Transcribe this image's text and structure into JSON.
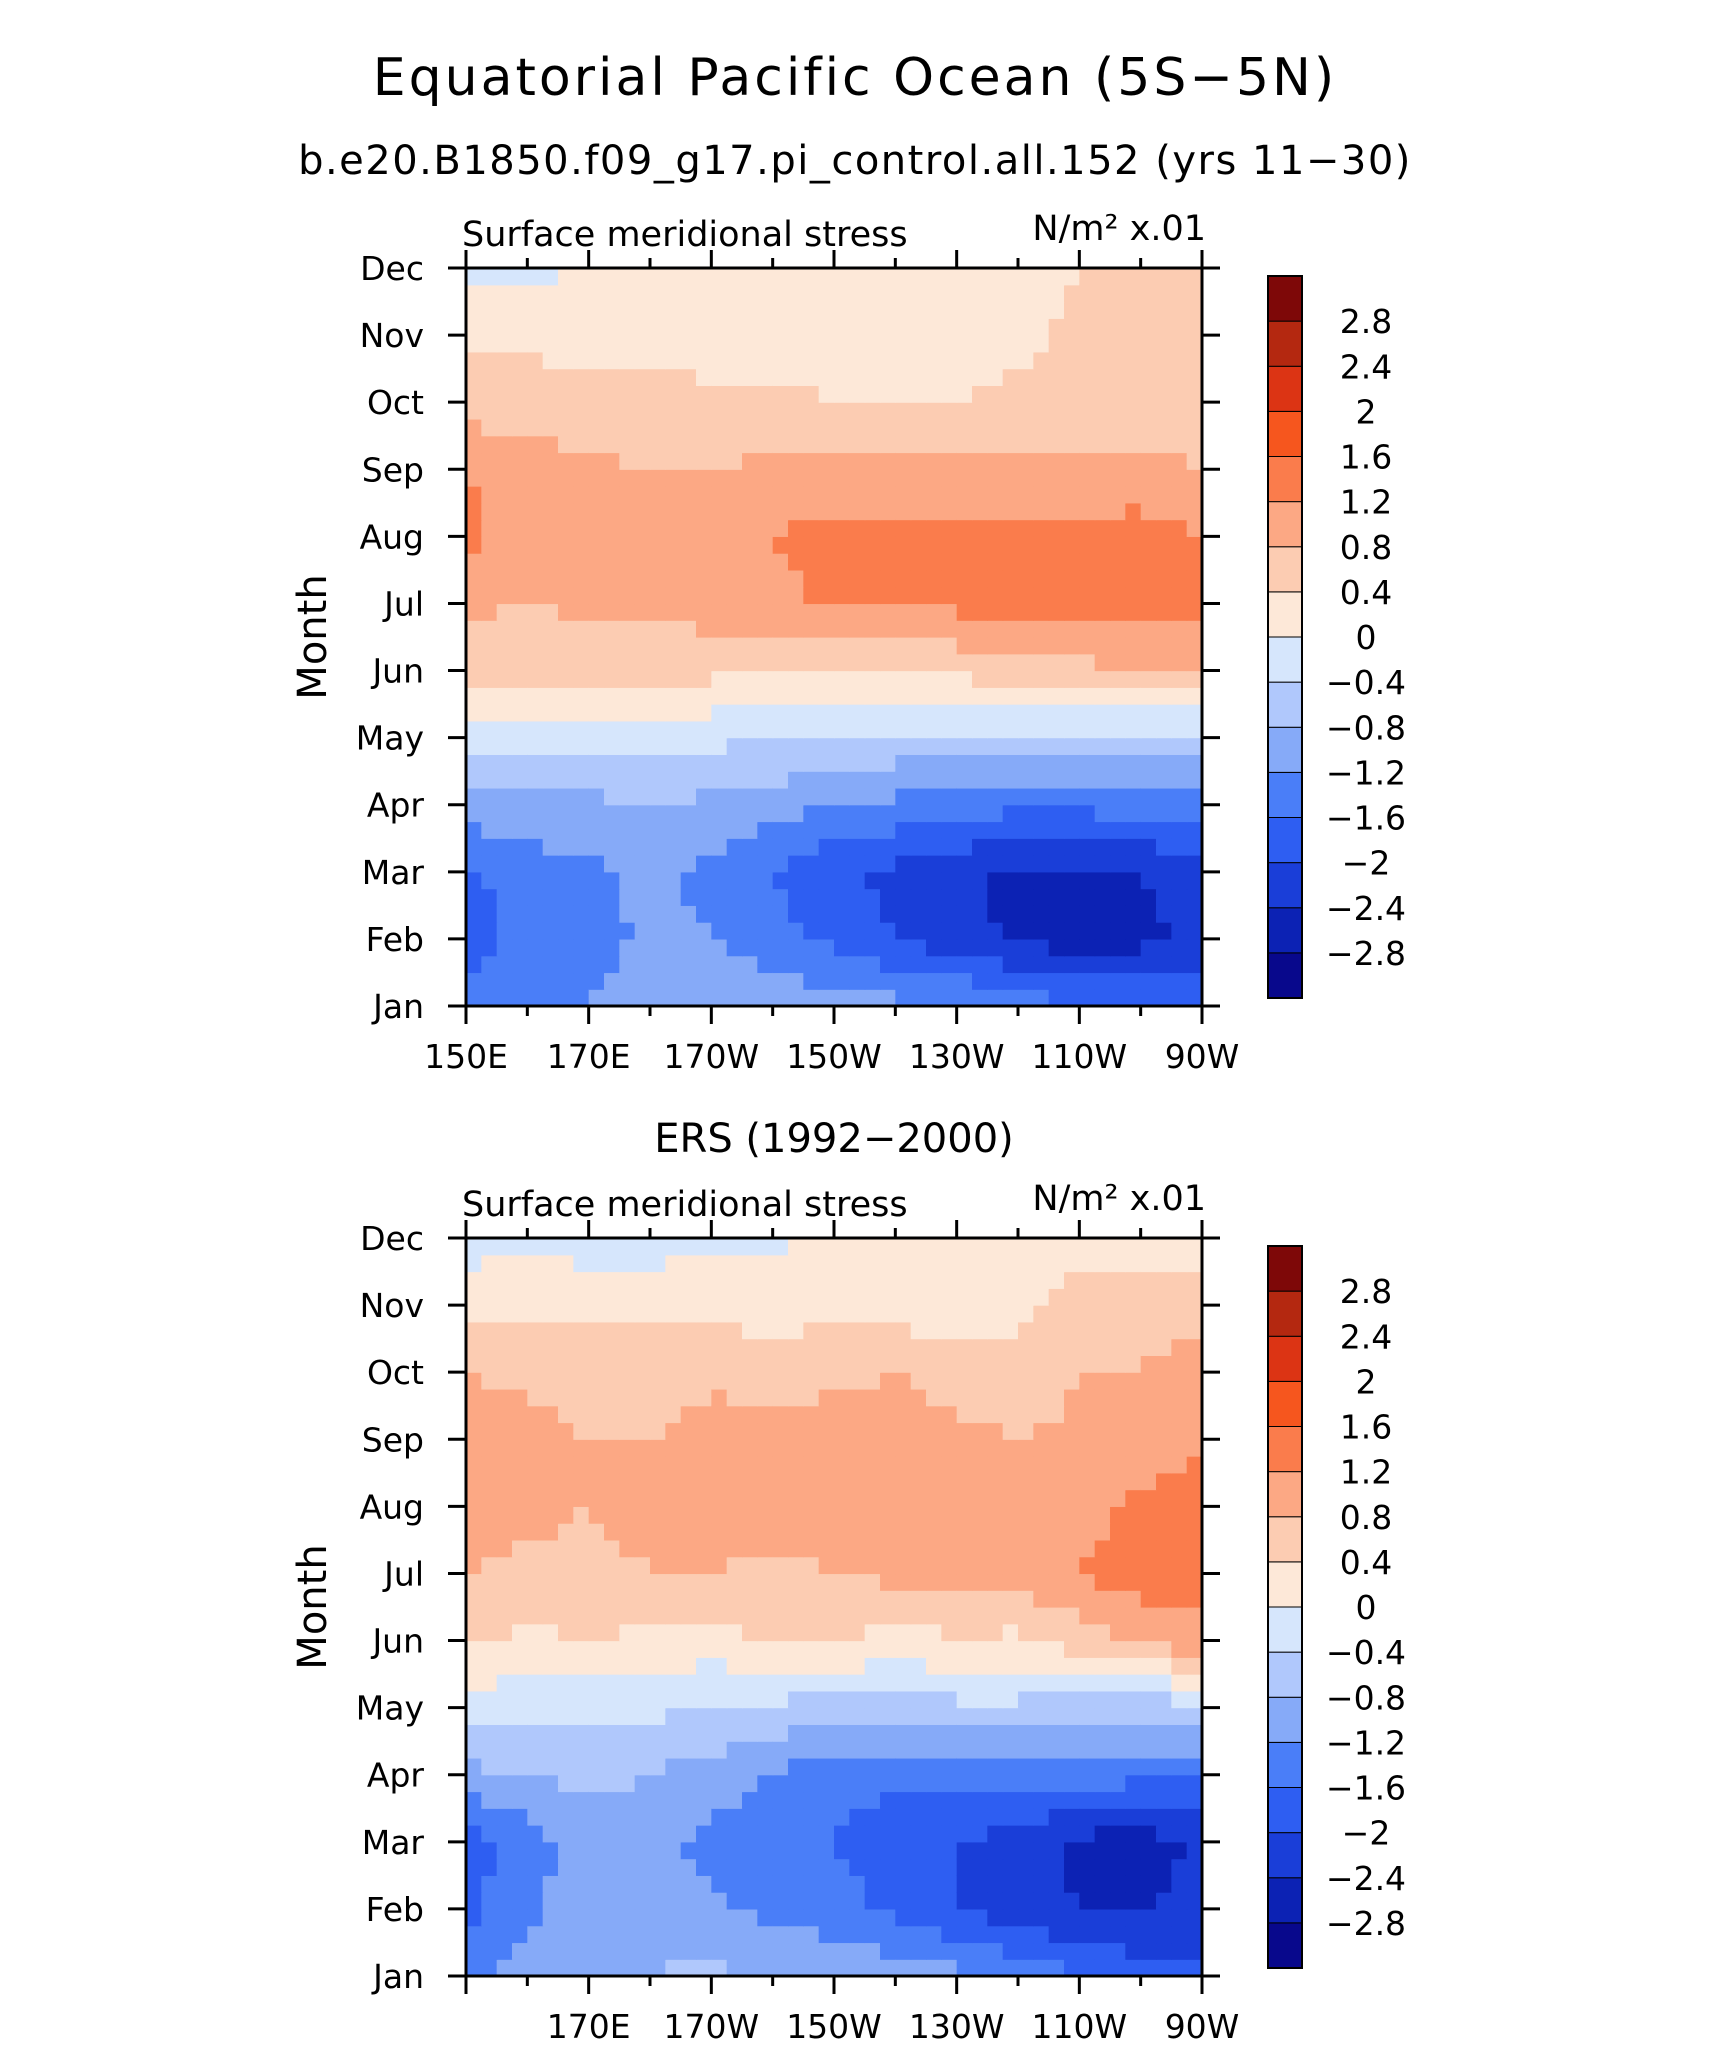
{
  "title": "Equatorial Pacific Ocean (5S−5N)",
  "subtitle": "b.e20.B1850.f09_g17.pi_control.all.152 (yrs 11−30)",
  "colors": {
    "neg2_8": "#08088c",
    "neg2_4": "#0c22b4",
    "neg2_0": "#1a3ed8",
    "neg1_6": "#2e5ef2",
    "neg1_2": "#4a7ef8",
    "neg0_8": "#86aaf8",
    "neg0_4": "#b0c8fc",
    "neg0_0": "#d6e6fc",
    "pos0_0": "#fde8d8",
    "pos0_4": "#fcccb2",
    "pos0_8": "#fca884",
    "pos1_2": "#fa7c4c",
    "pos1_6": "#f6561e",
    "pos2_0": "#dc3414",
    "pos2_4": "#b42810",
    "pos2_8": "#7e0808"
  },
  "chart_data": [
    {
      "type": "heatmap",
      "panel_title": "",
      "variable_label": "Surface meridional stress",
      "units_label": "N/m² x.01",
      "ylabel": "Month",
      "y_tick_labels": [
        "Jan",
        "Feb",
        "Mar",
        "Apr",
        "May",
        "Jun",
        "Jul",
        "Aug",
        "Sep",
        "Oct",
        "Nov",
        "Dec"
      ],
      "x_tick_labels": [
        "150E",
        "170E",
        "170W",
        "150W",
        "130W",
        "110W",
        "90W"
      ],
      "x": [
        150,
        160,
        170,
        180,
        190,
        200,
        210,
        220,
        230,
        240,
        250,
        260,
        270
      ],
      "colorbar_levels": [
        -2.8,
        -2.4,
        -2,
        -1.6,
        -1.2,
        -0.8,
        -0.4,
        0,
        0.4,
        0.8,
        1.2,
        1.6,
        2,
        2.4,
        2.8
      ],
      "values": [
        [
          -1.5,
          -1.3,
          -1.2,
          -0.9,
          -0.8,
          -0.9,
          -1.0,
          -1.1,
          -1.2,
          -1.3,
          -1.6,
          -1.7,
          -1.8
        ],
        [
          -1.8,
          -1.5,
          -1.4,
          -1.1,
          -1.2,
          -1.5,
          -1.7,
          -2.0,
          -2.2,
          -2.5,
          -2.6,
          -2.5,
          -2.3
        ],
        [
          -1.7,
          -1.4,
          -1.3,
          -1.1,
          -1.3,
          -1.6,
          -1.9,
          -2.1,
          -2.3,
          -2.5,
          -2.5,
          -2.4,
          -2.2
        ],
        [
          -1.0,
          -0.9,
          -0.9,
          -0.8,
          -0.9,
          -1.0,
          -1.2,
          -1.3,
          -1.4,
          -1.5,
          -1.5,
          -1.4,
          -1.3
        ],
        [
          -0.2,
          -0.2,
          -0.2,
          -0.2,
          -0.3,
          -0.4,
          -0.4,
          -0.5,
          -0.5,
          -0.5,
          -0.5,
          -0.5,
          -0.5
        ],
        [
          0.5,
          0.5,
          0.5,
          0.5,
          0.5,
          0.5,
          0.4,
          0.4,
          0.5,
          0.6,
          0.7,
          0.8,
          0.8
        ],
        [
          0.9,
          0.8,
          0.9,
          0.9,
          1.0,
          1.1,
          1.3,
          1.3,
          1.3,
          1.3,
          1.3,
          1.3,
          1.3
        ],
        [
          1.3,
          1.0,
          0.9,
          0.9,
          1.0,
          1.2,
          1.3,
          1.3,
          1.3,
          1.3,
          1.3,
          1.4,
          1.2
        ],
        [
          1.2,
          1.0,
          0.9,
          0.8,
          0.8,
          0.9,
          1.0,
          1.0,
          0.9,
          0.9,
          0.9,
          0.9,
          0.8
        ],
        [
          0.6,
          0.6,
          0.5,
          0.5,
          0.5,
          0.5,
          0.4,
          0.4,
          0.4,
          0.5,
          0.6,
          0.6,
          0.6
        ],
        [
          0.3,
          0.3,
          0.3,
          0.3,
          0.2,
          0.2,
          0.2,
          0.2,
          0.2,
          0.3,
          0.5,
          0.5,
          0.5
        ],
        [
          -0.1,
          -0.1,
          0.0,
          0.1,
          0.1,
          0.1,
          0.1,
          0.1,
          0.1,
          0.2,
          0.4,
          0.4,
          0.4
        ]
      ]
    },
    {
      "type": "heatmap",
      "panel_title": "ERS (1992−2000)",
      "variable_label": "Surface meridional stress",
      "units_label": "N/m² x.01",
      "ylabel": "Month",
      "y_tick_labels": [
        "Jan",
        "Feb",
        "Mar",
        "Apr",
        "May",
        "Jun",
        "Jul",
        "Aug",
        "Sep",
        "Oct",
        "Nov",
        "Dec"
      ],
      "x_tick_labels": [
        "170E",
        "170W",
        "150W",
        "130W",
        "110W",
        "90W"
      ],
      "x": [
        150,
        160,
        170,
        180,
        190,
        200,
        210,
        220,
        230,
        240,
        250,
        260,
        270
      ],
      "colorbar_levels": [
        -2.8,
        -2.4,
        -2,
        -1.6,
        -1.2,
        -0.8,
        -0.4,
        0,
        0.4,
        0.8,
        1.2,
        1.6,
        2,
        2.4,
        2.8
      ],
      "values": [
        [
          -1.3,
          -1.0,
          -0.9,
          -0.8,
          -0.7,
          -0.9,
          -0.9,
          -1.0,
          -1.1,
          -1.3,
          -1.6,
          -1.8,
          -1.9
        ],
        [
          -1.7,
          -1.3,
          -0.9,
          -1.0,
          -1.1,
          -1.3,
          -1.4,
          -1.7,
          -2.0,
          -2.2,
          -2.4,
          -2.4,
          -2.3
        ],
        [
          -1.8,
          -1.4,
          -1.0,
          -1.1,
          -1.3,
          -1.5,
          -1.6,
          -1.8,
          -2.0,
          -2.2,
          -2.5,
          -2.6,
          -2.3
        ],
        [
          -0.9,
          -0.8,
          -0.7,
          -0.8,
          -1.0,
          -1.2,
          -1.5,
          -1.5,
          -1.5,
          -1.4,
          -1.4,
          -1.5,
          -1.5
        ],
        [
          -0.2,
          -0.3,
          -0.3,
          -0.3,
          -0.4,
          -0.5,
          -0.6,
          -0.6,
          -0.5,
          -0.5,
          -0.6,
          -0.6,
          -0.6
        ],
        [
          0.5,
          0.3,
          0.4,
          0.3,
          0.2,
          0.5,
          0.5,
          0.2,
          0.4,
          0.3,
          0.6,
          0.9,
          1.1
        ],
        [
          0.8,
          0.7,
          0.7,
          0.8,
          0.8,
          0.7,
          0.8,
          0.9,
          0.9,
          1.0,
          1.2,
          1.4,
          1.3
        ],
        [
          1.0,
          0.9,
          0.8,
          0.9,
          1.0,
          1.0,
          0.9,
          1.0,
          1.0,
          0.9,
          1.0,
          1.3,
          1.3
        ],
        [
          1.1,
          1.0,
          0.8,
          0.8,
          1.0,
          1.0,
          1.0,
          1.0,
          0.9,
          0.8,
          0.9,
          1.0,
          1.2
        ],
        [
          0.8,
          0.7,
          0.6,
          0.6,
          0.7,
          0.6,
          0.7,
          0.8,
          0.6,
          0.5,
          0.8,
          0.8,
          1.0
        ],
        [
          0.3,
          0.3,
          0.3,
          0.3,
          0.3,
          0.2,
          0.3,
          0.2,
          0.2,
          0.3,
          0.6,
          0.7,
          0.6
        ],
        [
          -0.2,
          -0.1,
          -0.2,
          -0.2,
          -0.1,
          -0.1,
          0.1,
          0.1,
          0.1,
          0.1,
          0.2,
          0.2,
          0.1
        ]
      ]
    }
  ]
}
